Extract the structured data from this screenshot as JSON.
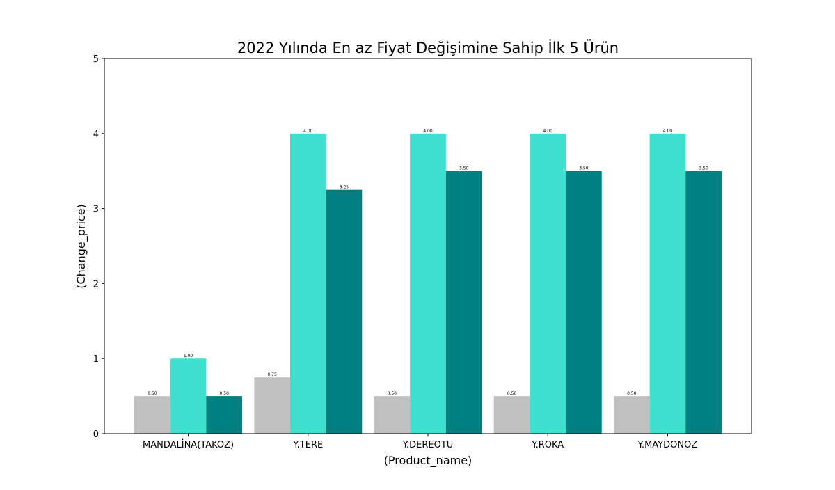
{
  "chart_data": {
    "type": "bar",
    "title": "2022 Yılında En az Fiyat Değişimine Sahip İlk 5 Ürün",
    "xlabel": "(Product_name)",
    "ylabel": "(Change_price)",
    "ylim": [
      0,
      5
    ],
    "yticks": [
      "0",
      "1",
      "2",
      "3",
      "4",
      "5"
    ],
    "grid": false,
    "legend": "none",
    "categories": [
      "MANDALİNA(TAKOZ)",
      "Y.TERE",
      "Y.DEREOTU",
      "Y.ROKA",
      "Y.MAYDONOZ"
    ],
    "series": [
      {
        "color": "#c0c0c0",
        "values": [
          0.5,
          0.75,
          0.5,
          0.5,
          0.5
        ],
        "labels": [
          "0.50",
          "0.75",
          "0.50",
          "0.50",
          "0.50"
        ]
      },
      {
        "color": "#40e0d0",
        "values": [
          1.0,
          4.0,
          4.0,
          4.0,
          4.0
        ],
        "labels": [
          "1.00",
          "4.00",
          "4.00",
          "4.00",
          "4.00"
        ]
      },
      {
        "color": "#008080",
        "values": [
          0.5,
          3.25,
          3.5,
          3.5,
          3.5
        ],
        "labels": [
          "0.50",
          "3.25",
          "3.50",
          "3.50",
          "3.50"
        ]
      }
    ]
  }
}
